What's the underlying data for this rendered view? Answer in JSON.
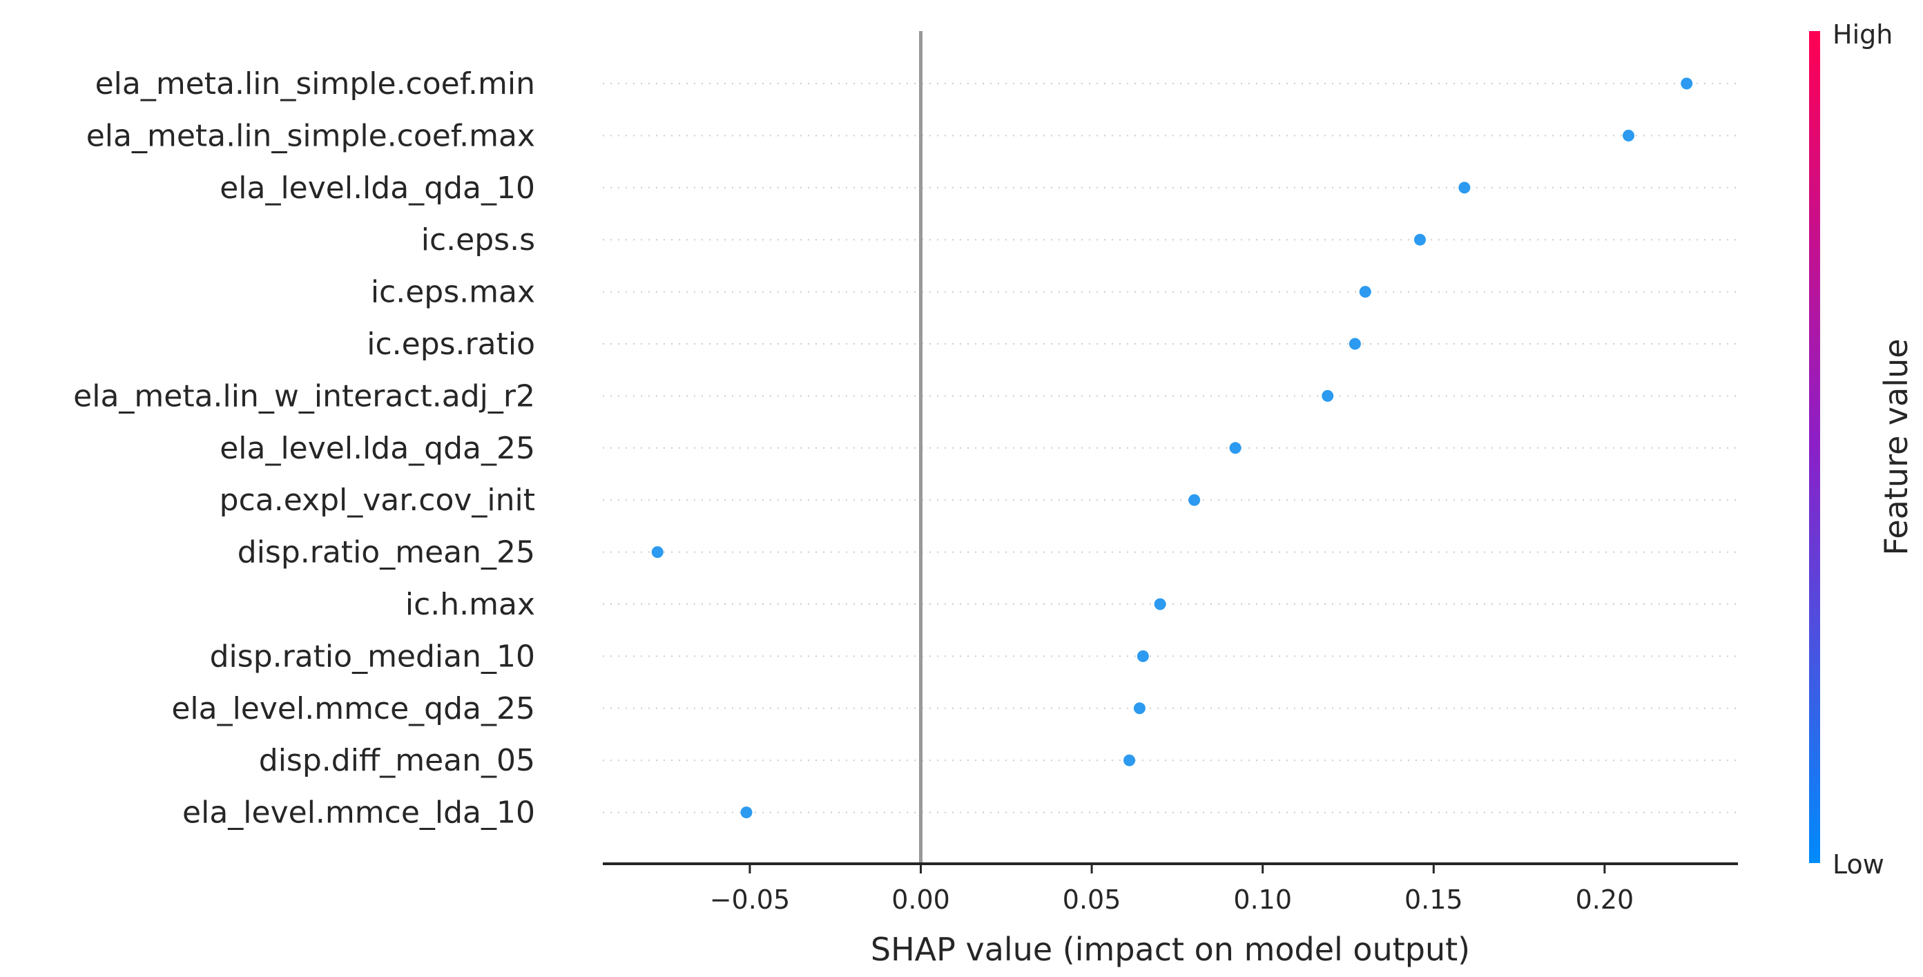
{
  "chart_data": {
    "type": "scatter",
    "xlabel": "SHAP value (impact on model output)",
    "xlim": [
      -0.093,
      0.239
    ],
    "xticks": [
      -0.05,
      0.0,
      0.05,
      0.1,
      0.15,
      0.2
    ],
    "xtick_labels": [
      "−0.05",
      "0.00",
      "0.05",
      "0.10",
      "0.15",
      "0.20"
    ],
    "features": [
      {
        "name": "ela_meta.lin_simple.coef.min",
        "shap": 0.224
      },
      {
        "name": "ela_meta.lin_simple.coef.max",
        "shap": 0.207
      },
      {
        "name": "ela_level.lda_qda_10",
        "shap": 0.159
      },
      {
        "name": "ic.eps.s",
        "shap": 0.146
      },
      {
        "name": "ic.eps.max",
        "shap": 0.13
      },
      {
        "name": "ic.eps.ratio",
        "shap": 0.127
      },
      {
        "name": "ela_meta.lin_w_interact.adj_r2",
        "shap": 0.119
      },
      {
        "name": "ela_level.lda_qda_25",
        "shap": 0.092
      },
      {
        "name": "pca.expl_var.cov_init",
        "shap": 0.08
      },
      {
        "name": "disp.ratio_mean_25",
        "shap": -0.077
      },
      {
        "name": "ic.h.max",
        "shap": 0.07
      },
      {
        "name": "disp.ratio_median_10",
        "shap": 0.065
      },
      {
        "name": "ela_level.mmce_qda_25",
        "shap": 0.064
      },
      {
        "name": "disp.diff_mean_05",
        "shap": 0.061
      },
      {
        "name": "ela_level.mmce_lda_10",
        "shap": -0.051
      }
    ],
    "colorbar": {
      "title": "Feature value",
      "high_label": "High",
      "low_label": "Low",
      "color_high": "#ff0052",
      "color_mid": "#8b20c8",
      "color_low": "#008bfb"
    },
    "point_color": "#2b9af0",
    "zero_line_color": "#999999",
    "grid": "horizontal dotted"
  }
}
